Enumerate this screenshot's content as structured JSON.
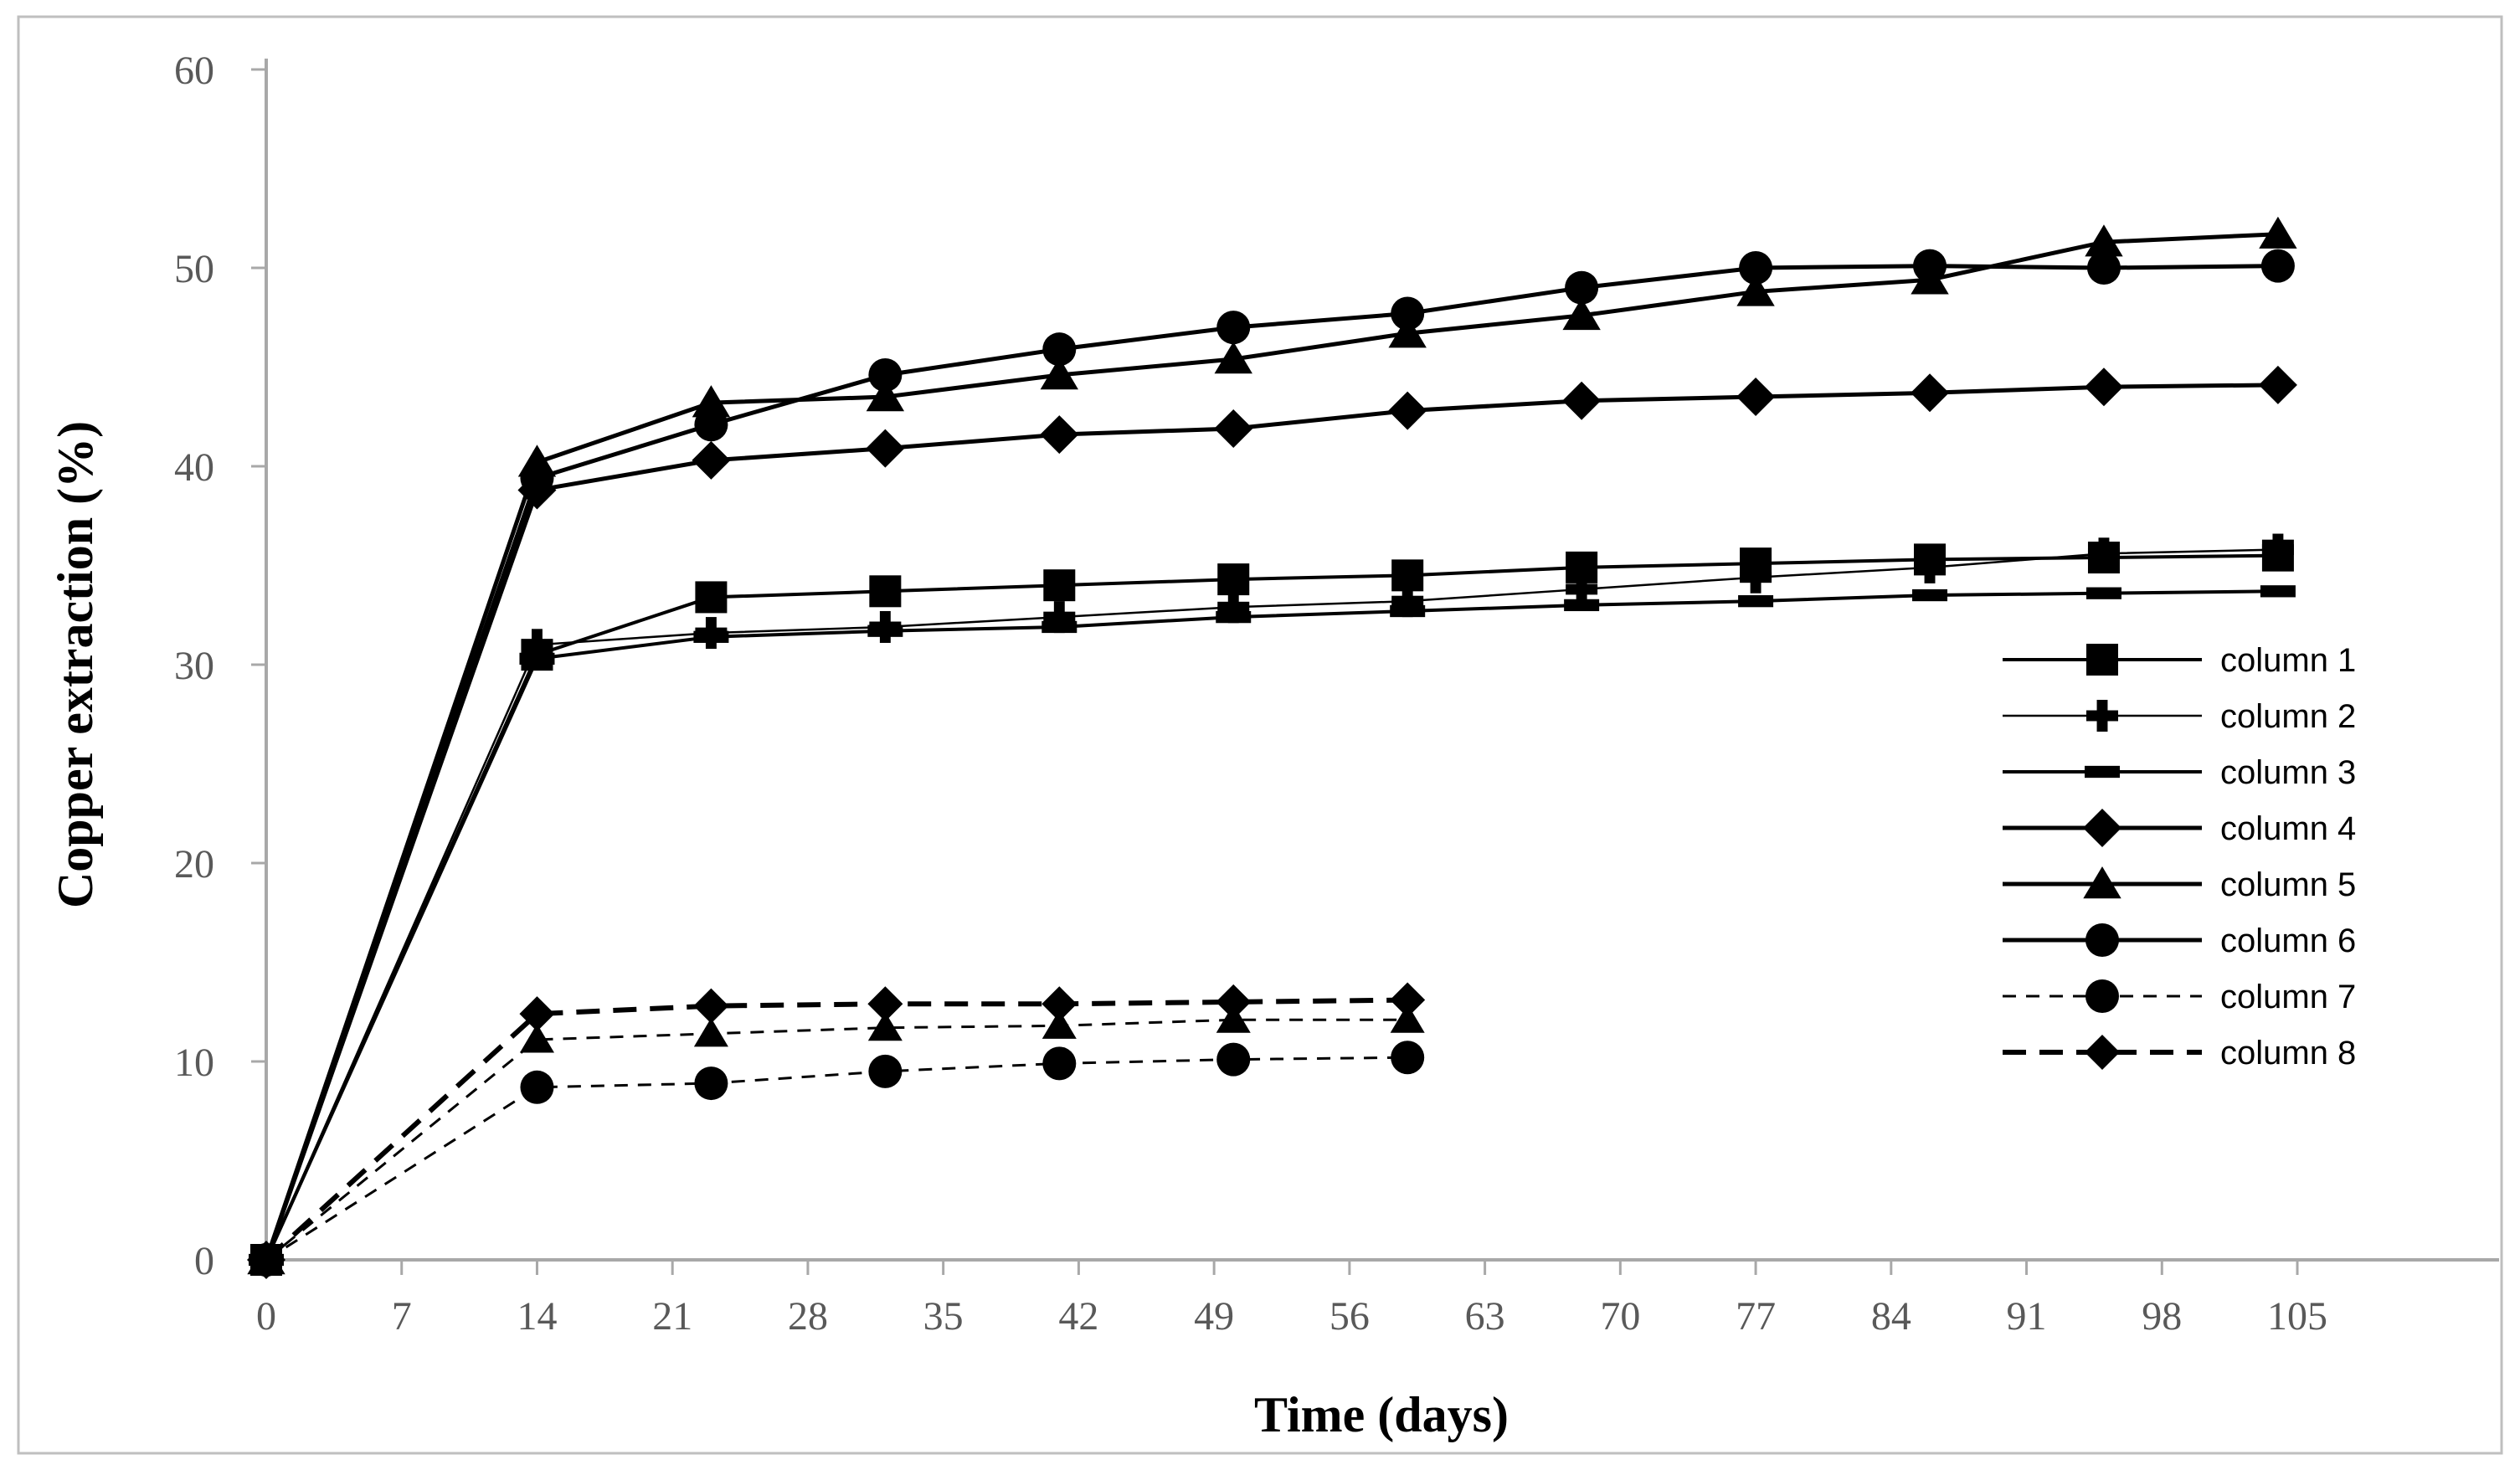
{
  "figure": {
    "background": "#ffffff",
    "border_color": "#bfbfbf",
    "axis_line_color": "#a8a8a8",
    "tick_label_color": "#595959",
    "data_color": "#000000"
  },
  "chart_data": {
    "type": "line",
    "title": "",
    "xlabel": "Time (days)",
    "ylabel": "Copper extraction (%)",
    "xlim": [
      0,
      115
    ],
    "ylim": [
      0,
      60
    ],
    "xticks": [
      0,
      7,
      14,
      21,
      28,
      35,
      42,
      49,
      56,
      63,
      70,
      77,
      84,
      91,
      98,
      105
    ],
    "yticks": [
      0,
      10,
      20,
      30,
      40,
      50,
      60
    ],
    "grid": false,
    "legend_position": "right-middle",
    "series": [
      {
        "name": "column 1",
        "marker": "square",
        "marker_size": 19,
        "line": "solid",
        "width": 4,
        "dash": "",
        "in_legend": true,
        "x": [
          0,
          14,
          23,
          32,
          41,
          50,
          59,
          68,
          77,
          86,
          95,
          104
        ],
        "y": [
          0,
          30.5,
          33.4,
          33.7,
          34.0,
          34.3,
          34.5,
          34.9,
          35.1,
          35.3,
          35.4,
          35.5
        ]
      },
      {
        "name": "column 2",
        "marker": "plus",
        "marker_size": 19,
        "line": "solid",
        "width": 2.5,
        "dash": "",
        "in_legend": true,
        "x": [
          0,
          14,
          23,
          32,
          41,
          50,
          59,
          68,
          77,
          86,
          95,
          104
        ],
        "y": [
          0,
          31.0,
          31.6,
          31.9,
          32.4,
          32.9,
          33.2,
          33.8,
          34.4,
          34.9,
          35.6,
          35.8
        ]
      },
      {
        "name": "column 3",
        "marker": "dash",
        "marker_size": 21,
        "line": "solid",
        "width": 4,
        "dash": "",
        "in_legend": true,
        "x": [
          0,
          14,
          23,
          32,
          41,
          50,
          59,
          68,
          77,
          86,
          95,
          104
        ],
        "y": [
          0,
          30.3,
          31.4,
          31.7,
          31.9,
          32.4,
          32.7,
          33.0,
          33.2,
          33.5,
          33.6,
          33.7
        ]
      },
      {
        "name": "column 4",
        "marker": "diamond",
        "marker_size": 23,
        "line": "solid",
        "width": 5,
        "dash": "",
        "in_legend": true,
        "x": [
          0,
          14,
          23,
          32,
          41,
          50,
          59,
          68,
          77,
          86,
          95,
          104
        ],
        "y": [
          0,
          38.8,
          40.3,
          40.9,
          41.6,
          41.9,
          42.8,
          43.3,
          43.5,
          43.7,
          44.0,
          44.1
        ]
      },
      {
        "name": "column 5",
        "marker": "triangle",
        "marker_size": 21,
        "line": "solid",
        "width": 5,
        "dash": "",
        "in_legend": true,
        "x": [
          0,
          14,
          23,
          32,
          41,
          50,
          59,
          68,
          77,
          86,
          95,
          104
        ],
        "y": [
          0,
          40.2,
          43.2,
          43.5,
          44.6,
          45.4,
          46.7,
          47.6,
          48.8,
          49.4,
          51.3,
          51.7
        ]
      },
      {
        "name": "column 6",
        "marker": "circle",
        "marker_size": 20,
        "line": "solid",
        "width": 5,
        "dash": "",
        "in_legend": true,
        "x": [
          0,
          14,
          23,
          32,
          41,
          50,
          59,
          68,
          77,
          86,
          95,
          104
        ],
        "y": [
          0,
          39.4,
          42.1,
          44.6,
          45.9,
          47.0,
          47.7,
          49.0,
          50.0,
          50.1,
          50.0,
          50.1
        ]
      },
      {
        "name": "column 7",
        "marker": "circle",
        "marker_size": 20,
        "line": "dashed",
        "width": 3,
        "dash": "16 12",
        "in_legend": true,
        "x": [
          0,
          14,
          23,
          32,
          41,
          50,
          59
        ],
        "y": [
          0,
          8.7,
          8.9,
          9.5,
          9.9,
          10.1,
          10.2
        ]
      },
      {
        "name": "column 8",
        "marker": "diamond",
        "marker_size": 21,
        "line": "dashed",
        "width": 6,
        "dash": "28 16",
        "in_legend": true,
        "x": [
          0,
          14,
          23,
          32,
          41,
          50,
          59
        ],
        "y": [
          0,
          12.4,
          12.8,
          12.9,
          12.9,
          13.0,
          13.1
        ]
      },
      {
        "name": "unlabeled dashed series",
        "marker": "triangle",
        "marker_size": 19,
        "line": "dashed",
        "width": 3,
        "dash": "16 12",
        "in_legend": false,
        "x": [
          0,
          14,
          23,
          32,
          41,
          50,
          59
        ],
        "y": [
          0,
          11.1,
          11.4,
          11.7,
          11.8,
          12.1,
          12.1
        ]
      }
    ],
    "legend_labels": [
      "column 1",
      "column 2",
      "column 3",
      "column 4",
      "column 5",
      "column 6",
      "column 7",
      "column 8"
    ]
  }
}
